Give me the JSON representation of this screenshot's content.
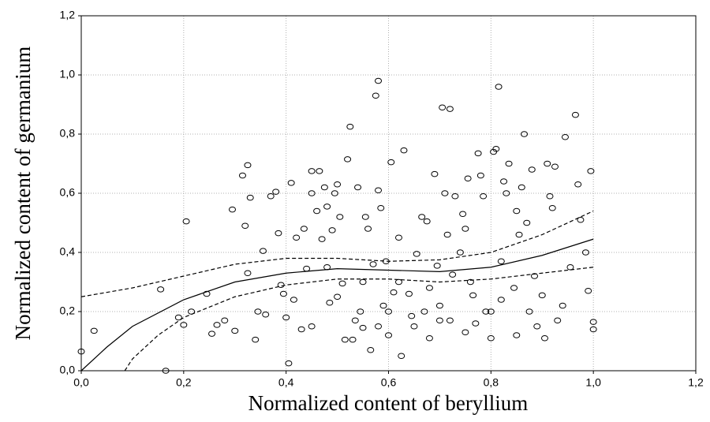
{
  "chart_data": {
    "type": "scatter",
    "x_label": "Normalized content of beryllium",
    "y_label": "Normalized content of germanium",
    "xlim": [
      0,
      1.2
    ],
    "ylim": [
      0,
      1.2
    ],
    "xticks": [
      {
        "value": 0,
        "label": "0,0"
      },
      {
        "value": 0.2,
        "label": "0,2"
      },
      {
        "value": 0.4,
        "label": "0,4"
      },
      {
        "value": 0.6,
        "label": "0,6"
      },
      {
        "value": 0.8,
        "label": "0,8"
      },
      {
        "value": 1.0,
        "label": "1,0"
      },
      {
        "value": 1.2,
        "label": "1,2"
      }
    ],
    "yticks": [
      {
        "value": 0,
        "label": "0,0"
      },
      {
        "value": 0.2,
        "label": "0,2"
      },
      {
        "value": 0.4,
        "label": "0,4"
      },
      {
        "value": 0.6,
        "label": "0,6"
      },
      {
        "value": 0.8,
        "label": "0,8"
      },
      {
        "value": 1.0,
        "label": "1,0"
      },
      {
        "value": 1.2,
        "label": "1,2"
      }
    ],
    "grid": true,
    "points": {
      "color": "#000000",
      "x": [
        0.0,
        0.025,
        0.155,
        0.165,
        0.19,
        0.2,
        0.205,
        0.215,
        0.245,
        0.255,
        0.265,
        0.28,
        0.295,
        0.3,
        0.315,
        0.32,
        0.325,
        0.33,
        0.325,
        0.34,
        0.345,
        0.355,
        0.36,
        0.37,
        0.38,
        0.385,
        0.39,
        0.395,
        0.4,
        0.405,
        0.41,
        0.415,
        0.42,
        0.43,
        0.435,
        0.44,
        0.45,
        0.45,
        0.46,
        0.465,
        0.47,
        0.475,
        0.48,
        0.485,
        0.49,
        0.495,
        0.5,
        0.505,
        0.51,
        0.515,
        0.52,
        0.525,
        0.53,
        0.535,
        0.54,
        0.545,
        0.55,
        0.555,
        0.56,
        0.565,
        0.57,
        0.575,
        0.58,
        0.58,
        0.585,
        0.59,
        0.595,
        0.6,
        0.605,
        0.61,
        0.62,
        0.625,
        0.63,
        0.64,
        0.645,
        0.655,
        0.665,
        0.67,
        0.675,
        0.68,
        0.69,
        0.695,
        0.7,
        0.705,
        0.71,
        0.715,
        0.72,
        0.725,
        0.73,
        0.74,
        0.745,
        0.75,
        0.755,
        0.76,
        0.765,
        0.77,
        0.775,
        0.78,
        0.785,
        0.79,
        0.8,
        0.805,
        0.81,
        0.815,
        0.82,
        0.825,
        0.83,
        0.835,
        0.845,
        0.85,
        0.855,
        0.86,
        0.865,
        0.87,
        0.875,
        0.88,
        0.885,
        0.89,
        0.9,
        0.905,
        0.91,
        0.915,
        0.92,
        0.925,
        0.93,
        0.94,
        0.945,
        0.955,
        0.965,
        0.97,
        0.975,
        0.985,
        0.99,
        0.995,
        1.0,
        1.0,
        0.45,
        0.5,
        0.55,
        0.6,
        0.65,
        0.7,
        0.75,
        0.8,
        0.85,
        0.48,
        0.62,
        0.72,
        0.82,
        0.58,
        0.68
      ],
      "y": [
        0.065,
        0.135,
        0.275,
        0.0,
        0.18,
        0.155,
        0.505,
        0.2,
        0.26,
        0.125,
        0.155,
        0.17,
        0.545,
        0.135,
        0.66,
        0.49,
        0.695,
        0.585,
        0.33,
        0.105,
        0.2,
        0.405,
        0.19,
        0.59,
        0.605,
        0.465,
        0.29,
        0.26,
        0.18,
        0.025,
        0.635,
        0.24,
        0.45,
        0.14,
        0.48,
        0.345,
        0.6,
        0.675,
        0.54,
        0.675,
        0.445,
        0.62,
        0.555,
        0.23,
        0.475,
        0.6,
        0.63,
        0.52,
        0.295,
        0.105,
        0.715,
        0.825,
        0.105,
        0.17,
        0.62,
        0.2,
        0.145,
        0.52,
        0.48,
        0.07,
        0.36,
        0.93,
        0.98,
        0.61,
        0.55,
        0.22,
        0.37,
        0.12,
        0.705,
        0.265,
        0.45,
        0.05,
        0.745,
        0.26,
        0.185,
        0.395,
        0.52,
        0.2,
        0.505,
        0.28,
        0.665,
        0.355,
        0.17,
        0.89,
        0.6,
        0.46,
        0.885,
        0.325,
        0.59,
        0.4,
        0.53,
        0.48,
        0.65,
        0.3,
        0.255,
        0.16,
        0.735,
        0.66,
        0.59,
        0.2,
        0.11,
        0.74,
        0.75,
        0.96,
        0.37,
        0.64,
        0.6,
        0.7,
        0.28,
        0.54,
        0.46,
        0.62,
        0.8,
        0.5,
        0.2,
        0.68,
        0.32,
        0.15,
        0.255,
        0.11,
        0.7,
        0.59,
        0.55,
        0.69,
        0.17,
        0.22,
        0.79,
        0.35,
        0.865,
        0.63,
        0.51,
        0.4,
        0.27,
        0.675,
        0.165,
        0.14,
        0.15,
        0.25,
        0.3,
        0.2,
        0.15,
        0.22,
        0.13,
        0.2,
        0.12,
        0.35,
        0.3,
        0.17,
        0.24,
        0.15,
        0.11
      ]
    },
    "lines": [
      {
        "line_style": "solid",
        "color": "#000000",
        "x": [
          0.0,
          0.05,
          0.1,
          0.2,
          0.3,
          0.4,
          0.5,
          0.6,
          0.7,
          0.8,
          0.9,
          1.0
        ],
        "y": [
          0.0,
          0.08,
          0.15,
          0.24,
          0.3,
          0.33,
          0.345,
          0.34,
          0.335,
          0.35,
          0.39,
          0.445
        ]
      },
      {
        "line_style": "dashed",
        "color": "#000000",
        "x": [
          0.0,
          0.1,
          0.2,
          0.3,
          0.4,
          0.5,
          0.6,
          0.7,
          0.8,
          0.9,
          1.0
        ],
        "y": [
          0.25,
          0.28,
          0.32,
          0.36,
          0.38,
          0.38,
          0.37,
          0.375,
          0.4,
          0.46,
          0.54
        ]
      },
      {
        "line_style": "dashed",
        "color": "#000000",
        "x": [
          0.085,
          0.1,
          0.15,
          0.2,
          0.3,
          0.4,
          0.5,
          0.6,
          0.7,
          0.8,
          0.9,
          1.0
        ],
        "y": [
          0.0,
          0.04,
          0.12,
          0.18,
          0.25,
          0.29,
          0.31,
          0.31,
          0.3,
          0.31,
          0.33,
          0.35
        ]
      }
    ]
  }
}
